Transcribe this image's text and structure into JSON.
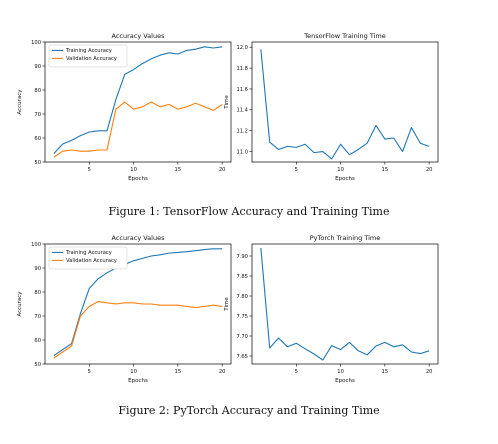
{
  "colors": {
    "blue": "#1f77b4",
    "orange": "#ff7f0e"
  },
  "figures": [
    {
      "caption": "Figure 1: TensorFlow Accuracy and Training Time"
    },
    {
      "caption": "Figure 2: PyTorch Accuracy and Training Time"
    }
  ],
  "chart_data": [
    {
      "type": "line",
      "title": "Accuracy Values",
      "xlabel": "Epochs",
      "ylabel": "Accuracy",
      "xlim": [
        0,
        21
      ],
      "ylim": [
        50,
        100
      ],
      "xticks": [
        5,
        10,
        15,
        20
      ],
      "yticks": [
        50,
        60,
        70,
        80,
        90,
        100
      ],
      "legend": "top-left",
      "x": [
        1,
        2,
        3,
        4,
        5,
        6,
        7,
        8,
        9,
        10,
        11,
        12,
        13,
        14,
        15,
        16,
        17,
        18,
        19,
        20
      ],
      "series": [
        {
          "name": "Training Accuracy",
          "color": "#1f77b4",
          "values": [
            53.5,
            57.5,
            59,
            61,
            62.5,
            63,
            63,
            76,
            86.5,
            88.5,
            91,
            93,
            94.5,
            95.5,
            95,
            96.5,
            97,
            98,
            97.5,
            98
          ]
        },
        {
          "name": "Validation Accuracy",
          "color": "#ff7f0e",
          "values": [
            52,
            54.5,
            55,
            54.5,
            54.5,
            55,
            55,
            72,
            75,
            72,
            73,
            75,
            73,
            74,
            72,
            73,
            74.5,
            73,
            71.5,
            74
          ]
        }
      ]
    },
    {
      "type": "line",
      "title": "TensorFlow Training Time",
      "xlabel": "Epochs",
      "ylabel": "Time",
      "xlim": [
        0,
        21
      ],
      "ylim": [
        10.9,
        12.05
      ],
      "xticks": [
        5,
        10,
        15,
        20
      ],
      "yticks": [
        11.0,
        11.2,
        11.4,
        11.6,
        11.8,
        12.0
      ],
      "ytick_decimals": 1,
      "x": [
        1,
        2,
        3,
        4,
        5,
        6,
        7,
        8,
        9,
        10,
        11,
        12,
        13,
        14,
        15,
        16,
        17,
        18,
        19,
        20
      ],
      "series": [
        {
          "color": "#1f77b4",
          "values": [
            11.98,
            11.09,
            11.02,
            11.05,
            11.04,
            11.07,
            10.99,
            11.0,
            10.93,
            11.07,
            10.97,
            11.02,
            11.08,
            11.25,
            11.12,
            11.13,
            11.0,
            11.23,
            11.08,
            11.05
          ]
        }
      ]
    },
    {
      "type": "line",
      "title": "Accuracy Values",
      "xlabel": "Epochs",
      "ylabel": "Accuracy",
      "xlim": [
        0,
        21
      ],
      "ylim": [
        50,
        100
      ],
      "xticks": [
        5,
        10,
        15,
        20
      ],
      "yticks": [
        50,
        60,
        70,
        80,
        90,
        100
      ],
      "legend": "top-left",
      "x": [
        1,
        2,
        3,
        4,
        5,
        6,
        7,
        8,
        9,
        10,
        11,
        12,
        13,
        14,
        15,
        16,
        17,
        18,
        19,
        20
      ],
      "series": [
        {
          "name": "Training Accuracy",
          "color": "#1f77b4",
          "values": [
            53.5,
            56,
            58.5,
            71,
            81.5,
            85.5,
            88,
            90,
            91.5,
            93,
            94,
            95,
            95.5,
            96.2,
            96.5,
            96.8,
            97.2,
            97.7,
            98,
            98
          ]
        },
        {
          "name": "Validation Accuracy",
          "color": "#ff7f0e",
          "values": [
            52.5,
            55,
            57.5,
            70,
            74,
            76,
            75.5,
            75,
            75.5,
            75.5,
            75,
            75,
            74.5,
            74.5,
            74.5,
            74,
            73.5,
            74,
            74.5,
            74
          ]
        }
      ]
    },
    {
      "type": "line",
      "title": "PyTorch Training Time",
      "xlabel": "Epochs",
      "ylabel": "Time",
      "xlim": [
        0,
        21
      ],
      "ylim": [
        7.63,
        7.93
      ],
      "xticks": [
        5,
        10,
        15,
        20
      ],
      "yticks": [
        7.65,
        7.7,
        7.75,
        7.8,
        7.85,
        7.9
      ],
      "ytick_decimals": 2,
      "x": [
        1,
        2,
        3,
        4,
        5,
        6,
        7,
        8,
        9,
        10,
        11,
        12,
        13,
        14,
        15,
        16,
        17,
        18,
        19,
        20
      ],
      "series": [
        {
          "color": "#1f77b4",
          "values": [
            7.92,
            7.67,
            7.695,
            7.673,
            7.682,
            7.668,
            7.655,
            7.64,
            7.676,
            7.666,
            7.684,
            7.663,
            7.653,
            7.675,
            7.684,
            7.673,
            7.678,
            7.66,
            7.656,
            7.663
          ]
        }
      ]
    }
  ]
}
